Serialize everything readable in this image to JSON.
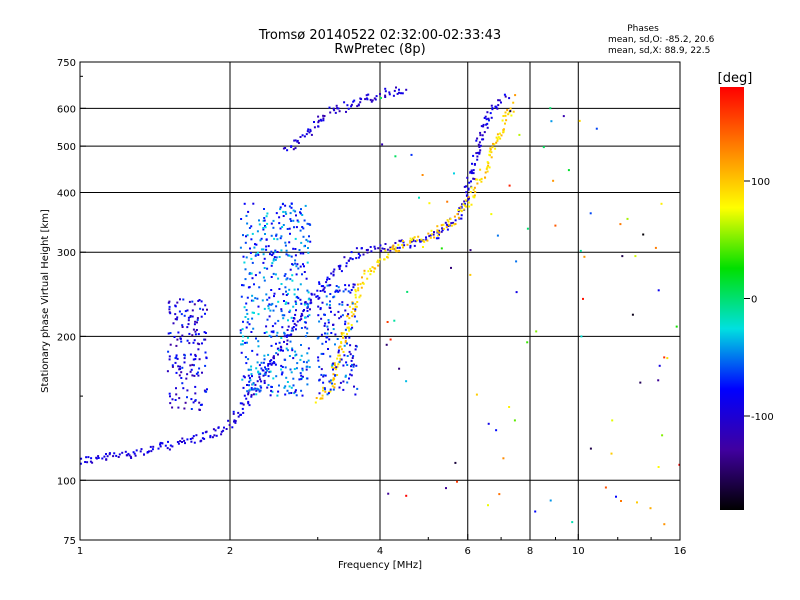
{
  "chart_data": {
    "type": "scatter",
    "title": "Tromsø 20140522 02:32:00-02:33:43",
    "subtitle": "RwPretec (8p)",
    "stats": {
      "header": "Phases",
      "line_o": "mean, sd,O: -85.2, 20.6",
      "line_x": "mean, sd,X: 88.9, 22.5"
    },
    "xlabel": "Frequency [MHz]",
    "ylabel": "Stationary phase Virtual Height [km]",
    "x_scale": "log",
    "y_scale": "log",
    "xlim": [
      1,
      16
    ],
    "ylim": [
      75,
      750
    ],
    "x_ticks": [
      1,
      2,
      4,
      6,
      8,
      10,
      16
    ],
    "x_tick_labels": [
      "1",
      "2",
      "4",
      "6",
      "8",
      "10",
      "16"
    ],
    "x_gridlines": [
      2,
      4,
      6,
      8,
      10
    ],
    "y_ticks": [
      75,
      100,
      200,
      300,
      400,
      500,
      600,
      750
    ],
    "y_tick_labels": [
      "75",
      "100",
      "200",
      "300",
      "400",
      "500",
      "600",
      "750"
    ],
    "y_gridlines": [
      100,
      200,
      300,
      400,
      500,
      600
    ],
    "grid": true,
    "colorbar": {
      "label": "[deg]",
      "range": [
        -180,
        180
      ],
      "ticks": [
        -100,
        0,
        100
      ],
      "tick_labels": [
        "-100",
        "0",
        "100"
      ],
      "colors": [
        "#ff0000",
        "#ff8000",
        "#ffff00",
        "#00e000",
        "#00e0e0",
        "#0000ff",
        "#4000a0",
        "#000000"
      ]
    },
    "traces": [
      {
        "description": "O-mode trace lower",
        "phase": -95,
        "points": [
          [
            1.0,
            110
          ],
          [
            1.1,
            111
          ],
          [
            1.2,
            113
          ],
          [
            1.35,
            115
          ],
          [
            1.5,
            118
          ],
          [
            1.65,
            121
          ],
          [
            1.8,
            124
          ],
          [
            1.95,
            128
          ],
          [
            2.05,
            135
          ],
          [
            2.2,
            150
          ],
          [
            2.35,
            168
          ],
          [
            2.5,
            185
          ],
          [
            2.65,
            205
          ],
          [
            2.8,
            225
          ],
          [
            3.0,
            248
          ],
          [
            3.2,
            268
          ],
          [
            3.4,
            285
          ],
          [
            3.6,
            298
          ],
          [
            3.9,
            305
          ],
          [
            4.2,
            308
          ],
          [
            4.6,
            312
          ],
          [
            5.0,
            320
          ],
          [
            5.4,
            335
          ],
          [
            5.7,
            355
          ],
          [
            5.9,
            380
          ],
          [
            6.1,
            430
          ],
          [
            6.3,
            500
          ],
          [
            6.5,
            560
          ],
          [
            6.8,
            610
          ],
          [
            7.2,
            640
          ]
        ]
      },
      {
        "description": "O-mode trace upper",
        "phase": -100,
        "points": [
          [
            2.6,
            485
          ],
          [
            2.8,
            520
          ],
          [
            3.0,
            560
          ],
          [
            3.2,
            590
          ],
          [
            3.5,
            610
          ],
          [
            3.8,
            630
          ],
          [
            4.1,
            645
          ],
          [
            4.5,
            655
          ]
        ]
      },
      {
        "description": "X-mode trace",
        "phase": 95,
        "points": [
          [
            3.0,
            148
          ],
          [
            3.2,
            158
          ],
          [
            3.4,
            200
          ],
          [
            3.6,
            248
          ],
          [
            3.8,
            272
          ],
          [
            4.0,
            290
          ],
          [
            4.3,
            305
          ],
          [
            4.7,
            318
          ],
          [
            5.2,
            330
          ],
          [
            5.6,
            350
          ],
          [
            6.0,
            380
          ],
          [
            6.4,
            430
          ],
          [
            6.8,
            500
          ],
          [
            7.1,
            560
          ],
          [
            7.4,
            610
          ]
        ]
      },
      {
        "description": "Spread cluster 2.1-2.9 MHz",
        "phase": -60,
        "x_range": [
          2.1,
          2.9
        ],
        "y_range": [
          150,
          380
        ]
      },
      {
        "description": "Spread cluster 1.5-1.8 MHz",
        "phase": -95,
        "x_range": [
          1.5,
          1.8
        ],
        "y_range": [
          140,
          240
        ]
      },
      {
        "description": "Spread cluster 3.0-3.6 MHz",
        "phase": -75,
        "x_range": [
          3.0,
          3.6
        ],
        "y_range": [
          150,
          260
        ]
      }
    ]
  }
}
